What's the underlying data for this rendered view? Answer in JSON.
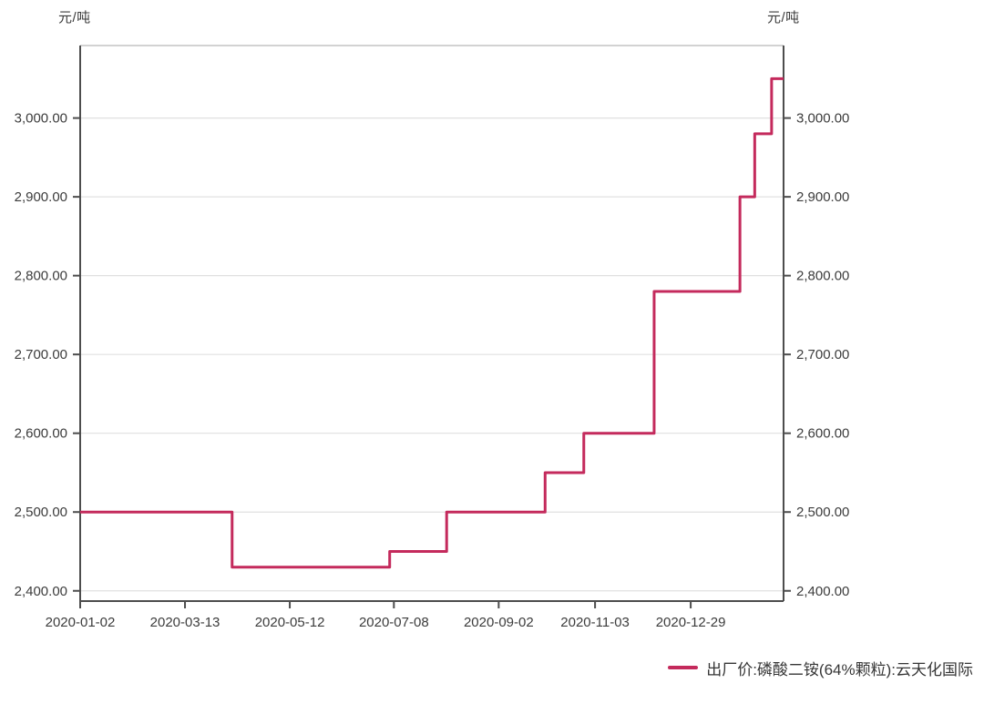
{
  "chart": {
    "unit_left": "元/吨",
    "unit_right": "元/吨",
    "legend": {
      "label": "出厂价:磷酸二铵(64%颗粒):云天化国际"
    }
  },
  "colors": {
    "line": "#c42a5c",
    "grid": "#e0e0e0",
    "plot_top_border": "#c4c4c4",
    "axis": "#4d4d4d",
    "tick_text": "#3c3c3c",
    "background": "#ffffff"
  },
  "chart_data": {
    "type": "line",
    "subtype": "step-after",
    "title": "",
    "xlabel": "",
    "ylabel_left": "元/吨",
    "ylabel_right": "元/吨",
    "grid": "horizontal",
    "legend_position": "bottom-right",
    "ylim": [
      2387,
      3092
    ],
    "y_ticks": [
      {
        "value": 2400,
        "label": "2,400.00"
      },
      {
        "value": 2500,
        "label": "2,500.00"
      },
      {
        "value": 2600,
        "label": "2,600.00"
      },
      {
        "value": 2700,
        "label": "2,700.00"
      },
      {
        "value": 2800,
        "label": "2,800.00"
      },
      {
        "value": 2900,
        "label": "2,900.00"
      },
      {
        "value": 3000,
        "label": "3,000.00"
      }
    ],
    "x_ticks": [
      {
        "label": "2020-01-02",
        "f": 0.0
      },
      {
        "label": "2020-03-13",
        "f": 0.149
      },
      {
        "label": "2020-05-12",
        "f": 0.298
      },
      {
        "label": "2020-07-08",
        "f": 0.446
      },
      {
        "label": "2020-09-02",
        "f": 0.595
      },
      {
        "label": "2020-11-03",
        "f": 0.732
      },
      {
        "label": "2020-12-29",
        "f": 0.868
      }
    ],
    "series": [
      {
        "name": "出厂价:磷酸二铵(64%颗粒):云天化国际",
        "color": "#c42a5c",
        "unit": "元/吨",
        "points": [
          {
            "f": 0.0,
            "value": 2500,
            "date": "2020-01-02"
          },
          {
            "f": 0.216,
            "value": 2430,
            "date": "2020-04-10"
          },
          {
            "f": 0.44,
            "value": 2450,
            "date": "2020-07-06"
          },
          {
            "f": 0.521,
            "value": 2500,
            "date": "2020-08-05"
          },
          {
            "f": 0.661,
            "value": 2550,
            "date": "2020-10-09"
          },
          {
            "f": 0.716,
            "value": 2600,
            "date": "2020-10-26"
          },
          {
            "f": 0.816,
            "value": 2780,
            "date": "2020-12-09"
          },
          {
            "f": 0.938,
            "value": 2900,
            "date": "2021-01-27"
          },
          {
            "f": 0.959,
            "value": 2980,
            "date": "2021-02-04"
          },
          {
            "f": 0.983,
            "value": 3050,
            "date": "2021-02-18"
          },
          {
            "f": 1.0,
            "value": 3050,
            "date": "2021-02-24"
          }
        ]
      }
    ]
  }
}
